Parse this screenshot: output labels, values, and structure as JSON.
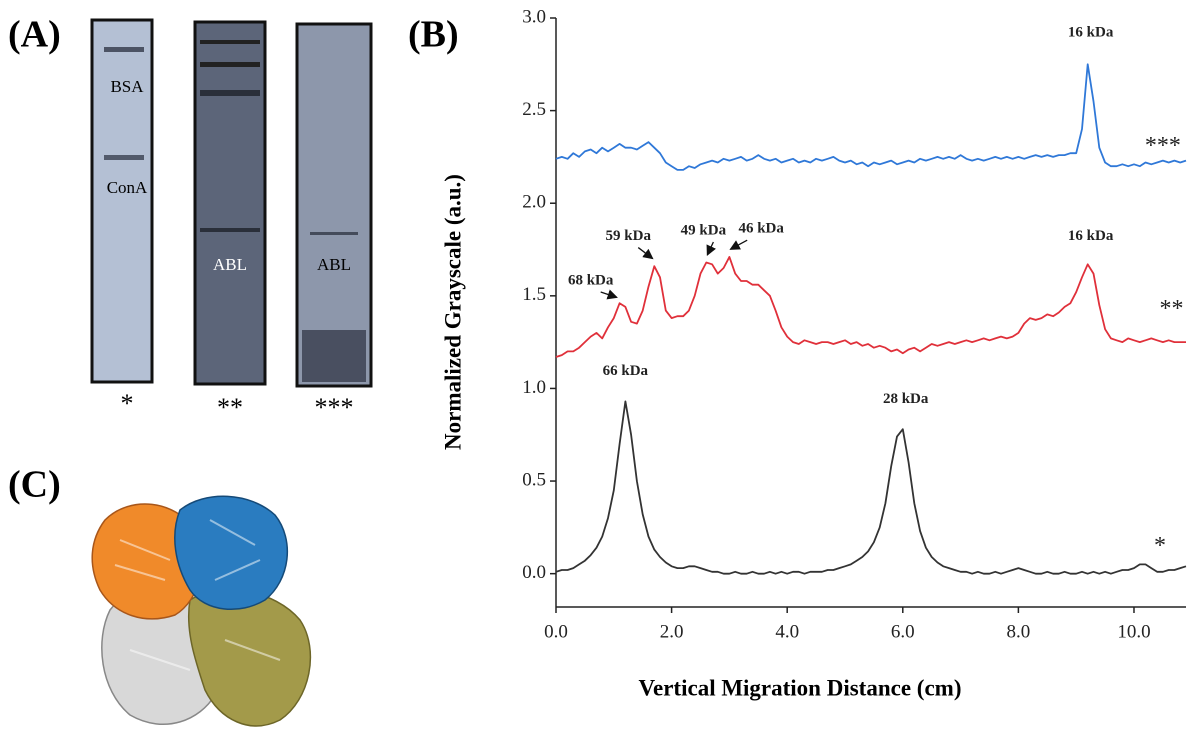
{
  "panel_labels": [
    "(A)",
    "(B)",
    "(C)"
  ],
  "gel": {
    "lanes": [
      {
        "bands": [
          "BSA",
          "ConA"
        ],
        "marker": "*"
      },
      {
        "bands": [
          "ABL"
        ],
        "marker": "**"
      },
      {
        "bands": [
          "ABL"
        ],
        "marker": "***"
      }
    ]
  },
  "chart_data": {
    "type": "line",
    "x_label": "Vertical Migration Distance (cm)",
    "y_label": "Normalized Grayscale (a.u.)",
    "x": [
      0,
      0.1,
      0.2,
      0.3,
      0.4,
      0.5,
      0.6,
      0.7,
      0.8,
      0.9,
      1,
      1.1,
      1.2,
      1.3,
      1.4,
      1.5,
      1.6,
      1.7,
      1.8,
      1.9,
      2,
      2.1,
      2.2,
      2.3,
      2.4,
      2.5,
      2.6,
      2.7,
      2.8,
      2.9,
      3,
      3.1,
      3.2,
      3.3,
      3.4,
      3.5,
      3.6,
      3.7,
      3.8,
      3.9,
      4,
      4.1,
      4.2,
      4.3,
      4.4,
      4.5,
      4.6,
      4.7,
      4.8,
      4.9,
      5,
      5.1,
      5.2,
      5.3,
      5.4,
      5.5,
      5.6,
      5.7,
      5.8,
      5.9,
      6,
      6.1,
      6.2,
      6.3,
      6.4,
      6.5,
      6.6,
      6.7,
      6.8,
      6.9,
      7,
      7.1,
      7.2,
      7.3,
      7.4,
      7.5,
      7.6,
      7.7,
      7.8,
      7.9,
      8,
      8.1,
      8.2,
      8.3,
      8.4,
      8.5,
      8.6,
      8.7,
      8.8,
      8.9,
      9,
      9.1,
      9.2,
      9.3,
      9.4,
      9.5,
      9.6,
      9.7,
      9.8,
      9.9,
      10,
      10.1,
      10.2,
      10.3,
      10.4,
      10.5,
      10.6,
      10.7,
      10.8,
      10.9
    ],
    "series": [
      {
        "name": "*",
        "color": "#333333",
        "values": [
          0.01,
          0.02,
          0.02,
          0.03,
          0.05,
          0.07,
          0.1,
          0.14,
          0.2,
          0.3,
          0.45,
          0.7,
          0.93,
          0.75,
          0.5,
          0.32,
          0.2,
          0.13,
          0.09,
          0.06,
          0.04,
          0.03,
          0.03,
          0.04,
          0.04,
          0.03,
          0.02,
          0.01,
          0.01,
          0,
          0,
          0.01,
          0,
          0,
          0.01,
          0,
          0,
          0.01,
          0,
          0.01,
          0,
          0.01,
          0.01,
          0,
          0.01,
          0.01,
          0.01,
          0.02,
          0.02,
          0.03,
          0.04,
          0.05,
          0.07,
          0.09,
          0.12,
          0.17,
          0.25,
          0.38,
          0.58,
          0.74,
          0.78,
          0.6,
          0.38,
          0.23,
          0.14,
          0.09,
          0.06,
          0.04,
          0.03,
          0.02,
          0.01,
          0.01,
          0,
          0.01,
          0,
          0,
          0.01,
          0,
          0.01,
          0.02,
          0.03,
          0.02,
          0.01,
          0,
          0,
          0.01,
          0,
          0,
          0.01,
          0,
          0,
          0.01,
          0,
          0.01,
          0,
          0.01,
          0,
          0.01,
          0.02,
          0.02,
          0.03,
          0.05,
          0.05,
          0.03,
          0.01,
          0.01,
          0.02,
          0.02,
          0.03,
          0.04
        ]
      },
      {
        "name": "**",
        "color": "#e0303a",
        "values": [
          1.17,
          1.18,
          1.2,
          1.2,
          1.22,
          1.25,
          1.28,
          1.3,
          1.27,
          1.33,
          1.38,
          1.46,
          1.44,
          1.36,
          1.35,
          1.42,
          1.55,
          1.66,
          1.6,
          1.42,
          1.38,
          1.39,
          1.39,
          1.42,
          1.5,
          1.62,
          1.68,
          1.67,
          1.62,
          1.65,
          1.71,
          1.62,
          1.58,
          1.58,
          1.56,
          1.56,
          1.53,
          1.5,
          1.42,
          1.33,
          1.28,
          1.25,
          1.24,
          1.26,
          1.25,
          1.24,
          1.25,
          1.25,
          1.24,
          1.25,
          1.26,
          1.24,
          1.25,
          1.23,
          1.24,
          1.22,
          1.23,
          1.22,
          1.2,
          1.21,
          1.19,
          1.21,
          1.22,
          1.2,
          1.22,
          1.24,
          1.23,
          1.24,
          1.25,
          1.24,
          1.25,
          1.26,
          1.25,
          1.26,
          1.27,
          1.26,
          1.27,
          1.28,
          1.27,
          1.28,
          1.3,
          1.35,
          1.38,
          1.37,
          1.38,
          1.4,
          1.39,
          1.41,
          1.44,
          1.46,
          1.52,
          1.6,
          1.67,
          1.62,
          1.45,
          1.32,
          1.27,
          1.26,
          1.25,
          1.27,
          1.26,
          1.25,
          1.26,
          1.27,
          1.26,
          1.25,
          1.26,
          1.25,
          1.25,
          1.25
        ]
      },
      {
        "name": "***",
        "color": "#2f78d8",
        "values": [
          2.24,
          2.25,
          2.24,
          2.27,
          2.25,
          2.28,
          2.29,
          2.27,
          2.3,
          2.28,
          2.3,
          2.32,
          2.3,
          2.3,
          2.29,
          2.31,
          2.33,
          2.3,
          2.27,
          2.22,
          2.2,
          2.18,
          2.18,
          2.2,
          2.19,
          2.21,
          2.22,
          2.23,
          2.22,
          2.24,
          2.23,
          2.24,
          2.25,
          2.23,
          2.24,
          2.26,
          2.24,
          2.23,
          2.24,
          2.22,
          2.23,
          2.24,
          2.22,
          2.23,
          2.22,
          2.24,
          2.23,
          2.24,
          2.25,
          2.23,
          2.22,
          2.23,
          2.21,
          2.22,
          2.2,
          2.22,
          2.21,
          2.22,
          2.23,
          2.21,
          2.22,
          2.23,
          2.22,
          2.24,
          2.23,
          2.24,
          2.25,
          2.24,
          2.25,
          2.24,
          2.26,
          2.24,
          2.23,
          2.24,
          2.23,
          2.24,
          2.25,
          2.24,
          2.25,
          2.24,
          2.25,
          2.24,
          2.25,
          2.26,
          2.25,
          2.26,
          2.25,
          2.26,
          2.26,
          2.27,
          2.27,
          2.4,
          2.75,
          2.55,
          2.3,
          2.22,
          2.2,
          2.2,
          2.21,
          2.2,
          2.21,
          2.2,
          2.22,
          2.21,
          2.22,
          2.23,
          2.22,
          2.23,
          2.22,
          2.23
        ]
      }
    ],
    "annotations": [
      "16 kDa",
      "16 kDa",
      "68 kDa",
      "59 kDa",
      "49 kDa",
      "46 kDa",
      "66 kDa",
      "28 kDa"
    ],
    "xlim": [
      0,
      10.9
    ],
    "ylim": [
      -0.18,
      3.0
    ],
    "xticks": [
      {
        "value": 0,
        "label": "0.0"
      },
      {
        "value": 2,
        "label": "2.0"
      },
      {
        "value": 4,
        "label": "4.0"
      },
      {
        "value": 6,
        "label": "6.0"
      },
      {
        "value": 8,
        "label": "8.0"
      },
      {
        "value": 10,
        "label": "10.0"
      }
    ],
    "yticks": [
      {
        "value": 0,
        "label": "0.0"
      },
      0.5,
      {
        "value": 1,
        "label": "1.0"
      },
      1.5,
      {
        "value": 2,
        "label": "2.0"
      },
      2.5,
      {
        "value": 3,
        "label": "3.0"
      }
    ],
    "grid": false
  }
}
